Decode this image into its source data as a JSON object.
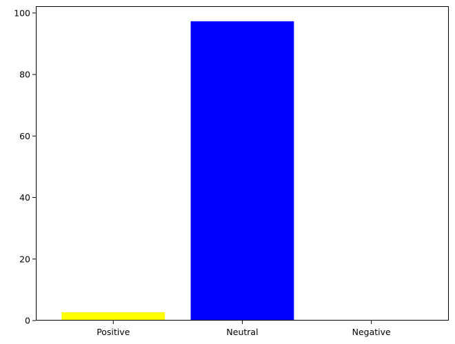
{
  "chart_data": {
    "type": "bar",
    "title": "",
    "xlabel": "",
    "ylabel": "",
    "categories": [
      "Positive",
      "Neutral",
      "Negative"
    ],
    "values": [
      2.7,
      97.3,
      0
    ],
    "colors": [
      "#ffff00",
      "#0000ff",
      "#ff0000"
    ],
    "ylim": [
      0,
      102.2
    ],
    "yticks": [
      0,
      20,
      40,
      60,
      80,
      100
    ],
    "grid": false,
    "legend": "none"
  }
}
